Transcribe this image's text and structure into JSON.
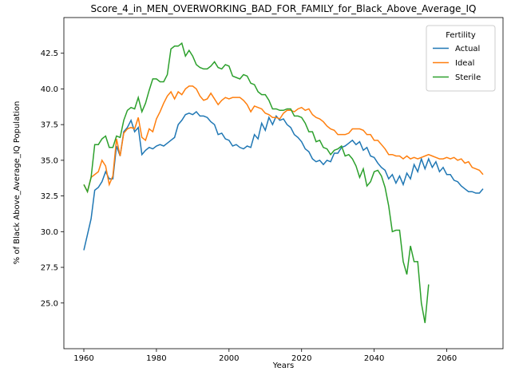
{
  "chart_data": {
    "type": "line",
    "title": "Score_4_in_MEN_OVERWORKING_BAD_FOR_FAMILY_for_Black_Above_Average_IQ",
    "xlabel": "Years",
    "ylabel": "% of Black Above_Average_IQ Population",
    "legend_title": "Fertility",
    "legend": "upper right",
    "x": [
      1960,
      1961,
      1962,
      1963,
      1964,
      1965,
      1966,
      1967,
      1968,
      1969,
      1970,
      1971,
      1972,
      1973,
      1974,
      1975,
      1976,
      1977,
      1978,
      1979,
      1980,
      1981,
      1982,
      1983,
      1984,
      1985,
      1986,
      1987,
      1988,
      1989,
      1990,
      1991,
      1992,
      1993,
      1994,
      1995,
      1996,
      1997,
      1998,
      1999,
      2000,
      2001,
      2002,
      2003,
      2004,
      2005,
      2006,
      2007,
      2008,
      2009,
      2010,
      2011,
      2012,
      2013,
      2014,
      2015,
      2016,
      2017,
      2018,
      2019,
      2020,
      2021,
      2022,
      2023,
      2024,
      2025,
      2026,
      2027,
      2028,
      2029,
      2030,
      2031,
      2032,
      2033,
      2034,
      2035,
      2036,
      2037,
      2038,
      2039,
      2040,
      2041,
      2042,
      2043,
      2044,
      2045,
      2046,
      2047,
      2048,
      2049,
      2050,
      2051,
      2052,
      2053,
      2054,
      2055,
      2056,
      2057,
      2058,
      2059,
      2060,
      2061,
      2062,
      2063,
      2064,
      2065,
      2066,
      2067,
      2068,
      2069,
      2070
    ],
    "series": [
      {
        "name": "Actual",
        "color": "#1f77b4",
        "values": [
          28.7,
          29.8,
          30.9,
          32.9,
          33.1,
          33.5,
          34.2,
          33.7,
          33.7,
          36.0,
          35.3,
          37.0,
          37.3,
          37.8,
          37.0,
          37.3,
          35.4,
          35.7,
          35.9,
          35.8,
          36.0,
          36.1,
          36.0,
          36.2,
          36.4,
          36.6,
          37.5,
          37.8,
          38.2,
          38.3,
          38.2,
          38.4,
          38.1,
          38.1,
          38.0,
          37.7,
          37.5,
          36.8,
          36.9,
          36.5,
          36.4,
          36.0,
          36.1,
          35.9,
          35.8,
          36.0,
          35.9,
          36.8,
          36.5,
          37.6,
          37.1,
          38.0,
          37.5,
          38.1,
          37.8,
          37.9,
          37.5,
          37.3,
          36.8,
          36.6,
          36.3,
          35.8,
          35.6,
          35.1,
          34.9,
          35.0,
          34.7,
          35.0,
          34.9,
          35.5,
          35.5,
          35.9,
          36.0,
          36.2,
          36.4,
          36.1,
          36.3,
          35.7,
          35.9,
          35.3,
          35.2,
          34.8,
          34.5,
          34.3,
          33.7,
          34.0,
          33.4,
          33.9,
          33.3,
          34.1,
          33.7,
          34.7,
          34.2,
          35.1,
          34.4,
          35.1,
          34.5,
          34.9,
          34.2,
          34.5,
          34.0,
          34.0,
          33.6,
          33.5,
          33.2,
          33.0,
          32.8,
          32.8,
          32.7,
          32.7,
          33.0
        ]
      },
      {
        "name": "Ideal",
        "color": "#ff7f0e",
        "values": [
          33.3,
          32.8,
          33.8,
          34.0,
          34.2,
          35.0,
          34.6,
          33.3,
          33.9,
          36.5,
          35.3,
          36.9,
          37.2,
          37.3,
          37.2,
          38.0,
          36.6,
          36.4,
          37.2,
          37.0,
          37.9,
          38.4,
          39.0,
          39.5,
          39.8,
          39.3,
          39.8,
          39.6,
          40.0,
          40.2,
          40.2,
          40.0,
          39.5,
          39.2,
          39.3,
          39.7,
          39.3,
          38.9,
          39.2,
          39.4,
          39.3,
          39.4,
          39.4,
          39.4,
          39.2,
          38.9,
          38.4,
          38.8,
          38.7,
          38.6,
          38.3,
          38.2,
          38.0,
          38.0,
          37.9,
          38.3,
          38.5,
          38.5,
          38.4,
          38.6,
          38.7,
          38.5,
          38.6,
          38.2,
          38.0,
          37.9,
          37.7,
          37.4,
          37.2,
          37.1,
          36.8,
          36.8,
          36.8,
          36.9,
          37.2,
          37.2,
          37.2,
          37.1,
          36.8,
          36.8,
          36.4,
          36.4,
          36.1,
          35.8,
          35.4,
          35.4,
          35.3,
          35.3,
          35.1,
          35.3,
          35.1,
          35.2,
          35.1,
          35.2,
          35.3,
          35.4,
          35.3,
          35.2,
          35.1,
          35.1,
          35.2,
          35.1,
          35.2,
          35.0,
          35.1,
          34.8,
          34.9,
          34.5,
          34.4,
          34.3,
          34.0
        ]
      },
      {
        "name": "Sterile",
        "color": "#2ca02c",
        "values": [
          33.3,
          32.8,
          33.8,
          36.1,
          36.1,
          36.5,
          36.7,
          35.9,
          35.9,
          36.7,
          36.6,
          37.8,
          38.5,
          38.7,
          38.6,
          39.4,
          38.4,
          39.0,
          39.9,
          40.7,
          40.7,
          40.5,
          40.5,
          41.0,
          42.8,
          43.0,
          43.0,
          43.2,
          42.3,
          42.7,
          42.3,
          41.7,
          41.5,
          41.4,
          41.4,
          41.6,
          41.9,
          41.5,
          41.4,
          41.7,
          41.6,
          40.9,
          40.8,
          40.7,
          41.0,
          40.9,
          40.4,
          40.3,
          39.8,
          39.6,
          39.6,
          39.2,
          38.6,
          38.6,
          38.5,
          38.5,
          38.6,
          38.6,
          38.1,
          38.1,
          38.0,
          37.6,
          37.0,
          37.0,
          36.3,
          36.4,
          35.9,
          35.8,
          35.4,
          35.7,
          35.8,
          36.0,
          35.3,
          35.4,
          35.1,
          34.6,
          33.8,
          34.4,
          33.2,
          33.5,
          34.2,
          34.3,
          33.9,
          33.1,
          31.8,
          30.0,
          30.1,
          30.1,
          27.9,
          27.0,
          29.0,
          27.9,
          27.9,
          25.0,
          23.6,
          26.3,
          null,
          null,
          null,
          null,
          null,
          null,
          null,
          null,
          null,
          null,
          null,
          null,
          null,
          null,
          null
        ]
      }
    ],
    "xlim": [
      1954.5,
      2075.5
    ],
    "ylim": [
      21.8,
      45.0
    ],
    "xticks": [
      1960,
      1980,
      2000,
      2020,
      2040,
      2060
    ],
    "yticks": [
      {
        "value": 25,
        "label": "25.0"
      },
      {
        "value": 27.5,
        "label": "27.5"
      },
      {
        "value": 30,
        "label": "30.0"
      },
      {
        "value": 32.5,
        "label": "32.5"
      },
      {
        "value": 35,
        "label": "35.0"
      },
      {
        "value": 37.5,
        "label": "37.5"
      },
      {
        "value": 40,
        "label": "40.0"
      },
      {
        "value": 42.5,
        "label": "42.5"
      }
    ]
  }
}
